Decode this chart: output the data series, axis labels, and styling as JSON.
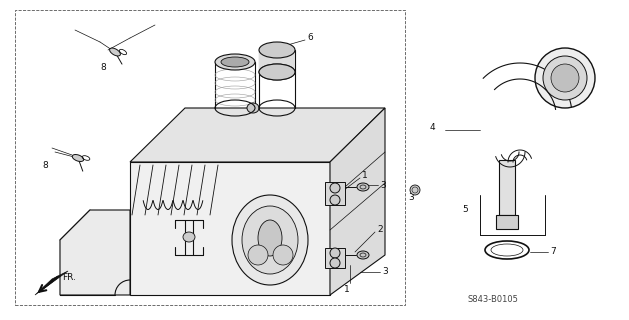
{
  "part_code": "S843-B0105",
  "bg_color": "#ffffff",
  "lc": "#111111",
  "gray1": "#cccccc",
  "gray2": "#aaaaaa",
  "gray3": "#888888",
  "fig_width": 6.29,
  "fig_height": 3.2,
  "dpi": 100
}
